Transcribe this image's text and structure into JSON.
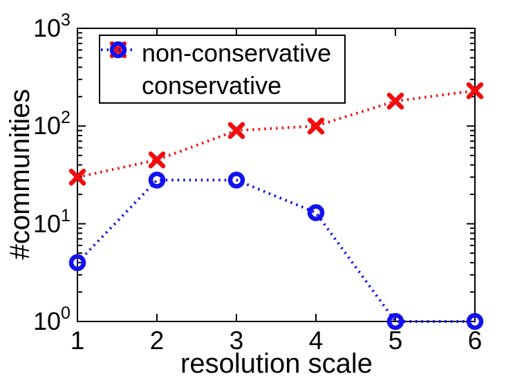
{
  "figure": {
    "background": "#ffffff",
    "axis_color": "#000000"
  },
  "chart_data": {
    "type": "line",
    "title": "",
    "xlabel": "resolution scale",
    "ylabel": "#communities",
    "x": [
      1,
      2,
      3,
      4,
      5,
      6
    ],
    "x_tick_labels": [
      "1",
      "2",
      "3",
      "4",
      "5",
      "6"
    ],
    "xlim": [
      1,
      6
    ],
    "y_scale": "log10",
    "ylim": [
      1,
      1000
    ],
    "y_tick_base": "10",
    "y_tick_exponents": [
      "0",
      "1",
      "2",
      "3"
    ],
    "grid": false,
    "legend": {
      "position": "top-left",
      "border": true
    },
    "series": [
      {
        "name": "non-conservative",
        "color": "#f20d0d",
        "marker": "x",
        "line_style": "dotted",
        "values": [
          30,
          45,
          90,
          100,
          180,
          230
        ]
      },
      {
        "name": "conservative",
        "color": "#1212f0",
        "marker": "o",
        "line_style": "dotted",
        "values": [
          4,
          28,
          28,
          13,
          1,
          1
        ]
      }
    ]
  }
}
